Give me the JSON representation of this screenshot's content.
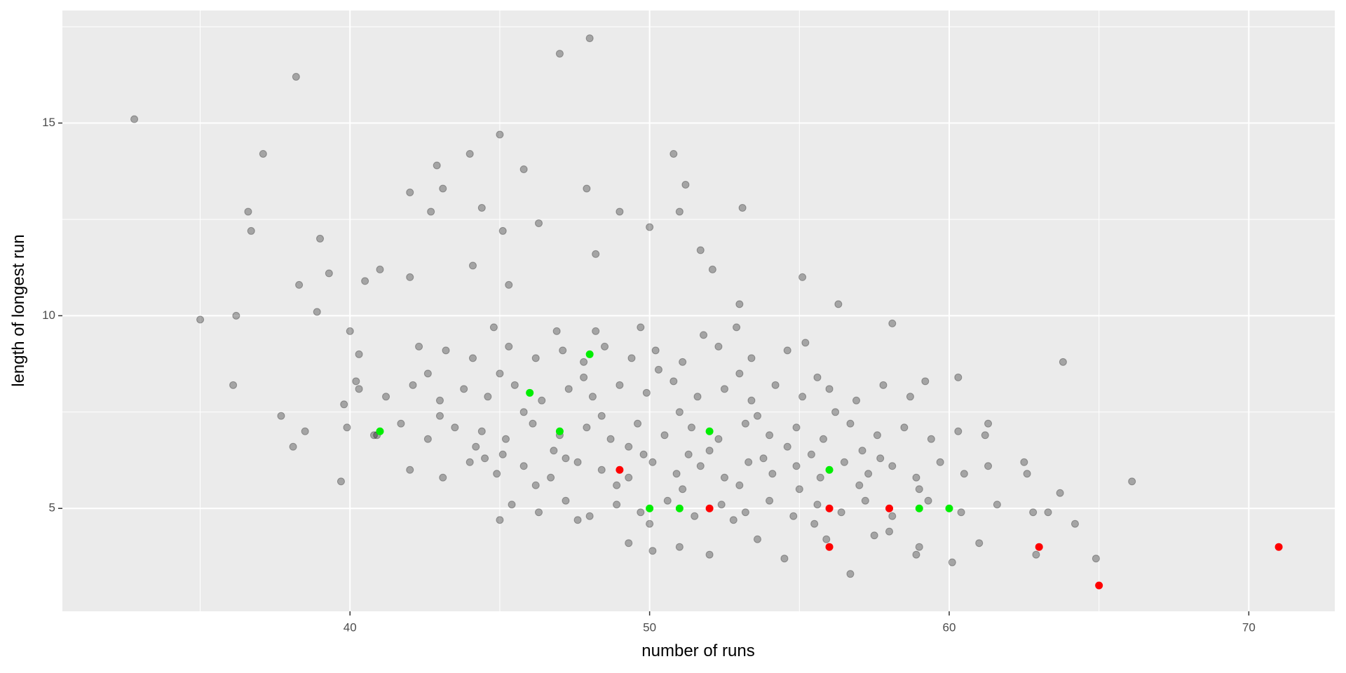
{
  "chart_data": {
    "type": "scatter",
    "xlabel": "number of runs",
    "ylabel": "length of longest run",
    "xlim": [
      30.4,
      72.87
    ],
    "ylim": [
      2.33,
      17.92
    ],
    "xticks": [
      40,
      50,
      60,
      70
    ],
    "yticks": [
      5,
      10,
      15
    ],
    "xminorticks": [
      35,
      45,
      55,
      65
    ],
    "yminorticks": [
      7.5,
      12.5,
      17.5
    ],
    "grid": true,
    "background": "#ebebeb",
    "series": [
      {
        "color": "#000000",
        "opacity": 0.3,
        "x": [
          32.8,
          35,
          36.1,
          36.2,
          36.6,
          36.7,
          37.1,
          37.7,
          38.1,
          38.2,
          38.3,
          38.5,
          38.9,
          39,
          39.3,
          39.7,
          39.8,
          40,
          40.2,
          40.3,
          40.5,
          40.9,
          41,
          42,
          42,
          42.7,
          42.9,
          43.1,
          44,
          44.1,
          44.4,
          45,
          45.3,
          45.1,
          45.8,
          46.3,
          47,
          48,
          47.9,
          48.2,
          49,
          50,
          50.8,
          51,
          51.2,
          51.7,
          52.1,
          53.1,
          53,
          55.1,
          56.3,
          58.1,
          60.3,
          61.3,
          62.5,
          63.8,
          63.7,
          64.2,
          64.9,
          66.1,
          60.1,
          56.7,
          50.1,
          49.3,
          44.5,
          45,
          54.5,
          58,
          43.2,
          44.1,
          45.3,
          46.2,
          47.1,
          47.8,
          48.5,
          49.4,
          50.2,
          51.1,
          52.3,
          53.4,
          54.6,
          55.2,
          42.3,
          44.8,
          46.9,
          48.2,
          49.7,
          51.8,
          52.9,
          40.3,
          41.2,
          42.1,
          43.0,
          43.8,
          44.6,
          45.5,
          46.4,
          47.3,
          48.1,
          49.0,
          49.9,
          50.8,
          51.6,
          52.5,
          53.4,
          54.2,
          55.1,
          56.0,
          56.9,
          57.8,
          58.7,
          59.2,
          42.6,
          45.0,
          47.8,
          50.3,
          53.0,
          55.6,
          39.9,
          40.8,
          41.7,
          42.6,
          43.5,
          44.4,
          45.2,
          46.1,
          47.0,
          47.9,
          48.7,
          49.6,
          50.5,
          51.4,
          52.3,
          53.2,
          54.0,
          54.9,
          55.8,
          56.7,
          57.6,
          58.5,
          59.4,
          60.3,
          61.2,
          43.0,
          45.8,
          48.4,
          51.0,
          53.6,
          56.2,
          44.2,
          46.8,
          49.3,
          52.0,
          54.6,
          57.1,
          42.0,
          43.1,
          44.0,
          44.9,
          45.8,
          46.7,
          47.6,
          48.4,
          49.3,
          50.1,
          50.9,
          51.7,
          52.5,
          53.3,
          54.1,
          54.9,
          55.7,
          56.5,
          57.3,
          58.1,
          58.9,
          59.7,
          60.5,
          61.3,
          62.6,
          45.1,
          47.2,
          49.8,
          51.3,
          53.8,
          55.4,
          57.7,
          46.2,
          48.9,
          51.1,
          53.0,
          55.0,
          57.0,
          59.0,
          45.4,
          46.3,
          47.2,
          48.0,
          48.9,
          49.7,
          50.6,
          51.5,
          52.4,
          53.2,
          54.0,
          54.8,
          55.6,
          56.4,
          57.2,
          58.1,
          59.3,
          60.4,
          61.6,
          62.8,
          63.3,
          47.6,
          50.0,
          52.8,
          55.5,
          53.6,
          55.9,
          57.5,
          59.0,
          61.0,
          51.0,
          52.0,
          58.9,
          62.9
        ],
        "y": [
          15.1,
          9.9,
          8.2,
          10,
          12.7,
          12.2,
          14.2,
          7.4,
          6.6,
          16.2,
          10.8,
          7,
          10.1,
          12,
          11.1,
          5.7,
          7.7,
          9.6,
          8.3,
          9,
          10.9,
          6.9,
          11.2,
          13.2,
          11,
          12.7,
          13.9,
          13.3,
          14.2,
          11.3,
          12.8,
          14.7,
          10.8,
          12.2,
          13.8,
          12.4,
          16.8,
          17.2,
          13.3,
          11.6,
          12.7,
          12.3,
          14.2,
          12.7,
          13.4,
          11.7,
          11.2,
          12.8,
          10.3,
          11,
          10.3,
          9.8,
          8.4,
          7.2,
          6.2,
          8.8,
          5.4,
          4.6,
          3.7,
          5.7,
          3.6,
          3.3,
          3.9,
          4.1,
          6.3,
          4.7,
          3.7,
          4.4,
          9.1,
          8.9,
          9.2,
          8.9,
          9.1,
          8.8,
          9.2,
          8.9,
          9.1,
          8.8,
          9.2,
          8.9,
          9.1,
          9.3,
          9.2,
          9.7,
          9.6,
          9.6,
          9.7,
          9.5,
          9.7,
          8.1,
          7.9,
          8.2,
          7.8,
          8.1,
          7.9,
          8.2,
          7.8,
          8.1,
          7.9,
          8.2,
          8.0,
          8.3,
          7.9,
          8.1,
          7.8,
          8.2,
          7.9,
          8.1,
          7.8,
          8.2,
          7.9,
          8.3,
          8.5,
          8.5,
          8.4,
          8.6,
          8.5,
          8.4,
          7.1,
          6.9,
          7.2,
          6.8,
          7.1,
          7.0,
          6.8,
          7.2,
          6.9,
          7.1,
          6.8,
          7.2,
          6.9,
          7.1,
          6.8,
          7.2,
          6.9,
          7.1,
          6.8,
          7.2,
          6.9,
          7.1,
          6.8,
          7.0,
          6.9,
          7.4,
          7.5,
          7.4,
          7.5,
          7.4,
          7.5,
          6.6,
          6.5,
          6.6,
          6.5,
          6.6,
          6.5,
          6.0,
          5.8,
          6.2,
          5.9,
          6.1,
          5.8,
          6.2,
          6.0,
          5.8,
          6.2,
          5.9,
          6.1,
          5.8,
          6.2,
          5.9,
          6.1,
          5.8,
          6.2,
          5.9,
          6.1,
          5.8,
          6.2,
          5.9,
          6.1,
          5.9,
          6.4,
          6.3,
          6.4,
          6.4,
          6.3,
          6.4,
          6.3,
          5.6,
          5.6,
          5.5,
          5.6,
          5.5,
          5.6,
          5.5,
          5.1,
          4.9,
          5.2,
          4.8,
          5.1,
          4.9,
          5.2,
          4.8,
          5.1,
          4.9,
          5.2,
          4.8,
          5.1,
          4.9,
          5.2,
          4.8,
          5.2,
          4.9,
          5.1,
          4.9,
          4.9,
          4.7,
          4.6,
          4.7,
          4.6,
          4.2,
          4.2,
          4.3,
          4.0,
          4.1,
          4.0,
          3.8,
          3.8,
          3.8
        ]
      },
      {
        "color": "#00ee00",
        "opacity": 1,
        "x": [
          41,
          46,
          47,
          48,
          52,
          50,
          51,
          56,
          59,
          60
        ],
        "y": [
          7,
          8,
          7,
          9,
          7,
          5,
          5,
          6,
          5,
          5
        ]
      },
      {
        "color": "#ff0000",
        "opacity": 1,
        "x": [
          49,
          52,
          56,
          56,
          58,
          63,
          65,
          71
        ],
        "y": [
          6,
          5,
          5,
          4,
          5,
          4,
          3,
          4
        ]
      }
    ]
  }
}
